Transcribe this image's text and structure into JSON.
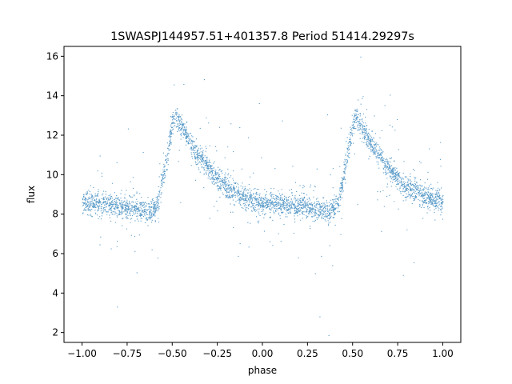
{
  "chart_data": {
    "type": "scatter",
    "title": "1SWASPJ144957.51+401357.8 Period 51414.29297s",
    "xlabel": "phase",
    "ylabel": "flux",
    "xlim": [
      -1.1,
      1.1
    ],
    "ylim": [
      1.5,
      16.5
    ],
    "xticks": [
      -1.0,
      -0.75,
      -0.5,
      -0.25,
      0.0,
      0.25,
      0.5,
      0.75,
      1.0
    ],
    "xtick_labels": [
      "−1.00",
      "−0.75",
      "−0.50",
      "−0.25",
      "0.00",
      "0.25",
      "0.50",
      "0.75",
      "1.00"
    ],
    "yticks": [
      2,
      4,
      6,
      8,
      10,
      12,
      14,
      16
    ],
    "ytick_labels": [
      "2",
      "4",
      "6",
      "8",
      "10",
      "12",
      "14",
      "16"
    ],
    "grid": false,
    "marker_color": "#1f77b4",
    "profile": {
      "description_points_phase": [
        -1.0,
        -0.9,
        -0.8,
        -0.7,
        -0.62,
        -0.58,
        -0.54,
        -0.5,
        -0.48,
        -0.45,
        -0.4,
        -0.35,
        -0.3,
        -0.25,
        -0.2,
        -0.1,
        0.0,
        0.1,
        0.2,
        0.3,
        0.38,
        0.42,
        0.46,
        0.5,
        0.52,
        0.55,
        0.6,
        0.65,
        0.7,
        0.75,
        0.8,
        0.9,
        1.0
      ],
      "flux": [
        8.6,
        8.5,
        8.4,
        8.3,
        8.1,
        8.6,
        10.5,
        12.6,
        13.0,
        12.4,
        11.6,
        10.9,
        10.3,
        9.8,
        9.4,
        8.8,
        8.6,
        8.5,
        8.4,
        8.3,
        8.1,
        8.6,
        10.5,
        12.6,
        13.0,
        12.4,
        11.6,
        10.9,
        10.3,
        9.8,
        9.4,
        8.9,
        8.6
      ]
    }
  }
}
